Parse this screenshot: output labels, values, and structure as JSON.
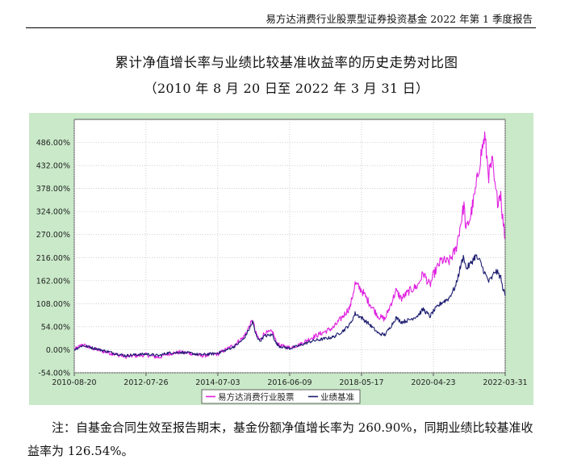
{
  "header": {
    "text": "易方达消费行业股票型证券投资基金 2022 年第 1 季度报告"
  },
  "title": "累计净值增长率与业绩比较基准收益率的历史走势对比图",
  "subtitle": "（2010 年 8 月 20 日至 2022 年 3 月 31 日）",
  "note": "注：自基金合同生效至报告期末，基金份额净值增长率为 260.90%，同期业绩比较基准收益率为 126.54%。",
  "colors": {
    "panel": "#c9e9c8",
    "plot_bg": "#ffffff",
    "fund": "#e020e0",
    "benchmark": "#1c1c70",
    "grid": "#bbbbbb"
  },
  "chart_data": {
    "type": "line",
    "title": "累计净值增长率与业绩比较基准收益率的历史走势对比图",
    "subtitle": "（2010 年 8 月 20 日至 2022 年 3 月 31 日）",
    "x_type": "date",
    "xlim": [
      "2010-08-20",
      "2022-03-31"
    ],
    "x_ticks": [
      "2010-08-20",
      "2012-07-26",
      "2014-07-03",
      "2016-06-09",
      "2018-05-17",
      "2020-04-23",
      "2022-03-31"
    ],
    "ylim": [
      -54,
      540
    ],
    "y_ticks": [
      -54,
      0,
      54,
      108,
      162,
      216,
      270,
      324,
      378,
      432,
      486
    ],
    "y_tick_labels": [
      "-54.00%",
      "0.00%",
      "54.00%",
      "108.00%",
      "162.00%",
      "216.00%",
      "270.00%",
      "324.00%",
      "378.00%",
      "432.00%",
      "486.00%"
    ],
    "grid": true,
    "legend_position": "bottom-center",
    "series": [
      {
        "name": "易方达消费行业股票",
        "color": "#e020e0",
        "x": [
          "2010-08-20",
          "2010-11-10",
          "2011-01-20",
          "2011-05-01",
          "2011-09-15",
          "2012-01-05",
          "2012-04-01",
          "2012-07-26",
          "2012-12-01",
          "2013-02-15",
          "2013-06-25",
          "2013-10-01",
          "2014-01-15",
          "2014-04-15",
          "2014-07-03",
          "2014-10-01",
          "2014-12-15",
          "2015-03-15",
          "2015-05-10",
          "2015-06-12",
          "2015-07-08",
          "2015-08-20",
          "2015-10-01",
          "2015-12-25",
          "2016-01-28",
          "2016-03-01",
          "2016-06-09",
          "2016-09-15",
          "2017-01-10",
          "2017-05-01",
          "2017-08-15",
          "2017-11-20",
          "2018-01-25",
          "2018-03-15",
          "2018-05-17",
          "2018-08-01",
          "2018-10-31",
          "2019-01-03",
          "2019-03-15",
          "2019-04-20",
          "2019-06-15",
          "2019-09-01",
          "2019-11-20",
          "2020-01-15",
          "2020-03-20",
          "2020-04-23",
          "2020-07-10",
          "2020-09-20",
          "2020-11-30",
          "2021-01-20",
          "2021-02-18",
          "2021-03-10",
          "2021-04-20",
          "2021-06-10",
          "2021-07-30",
          "2021-09-10",
          "2021-10-20",
          "2021-11-25",
          "2021-12-20",
          "2022-01-15",
          "2022-02-15",
          "2022-03-01",
          "2022-03-31"
        ],
        "y": [
          0,
          12,
          5,
          -2,
          -10,
          -16,
          -14,
          -12,
          -18,
          -10,
          -6,
          -8,
          -14,
          -12,
          -10,
          2,
          12,
          30,
          55,
          70,
          40,
          22,
          38,
          42,
          18,
          10,
          5,
          12,
          28,
          40,
          52,
          80,
          100,
          155,
          140,
          110,
          78,
          72,
          115,
          138,
          120,
          138,
          150,
          180,
          150,
          175,
          210,
          205,
          235,
          300,
          340,
          280,
          310,
          370,
          450,
          500,
          410,
          440,
          380,
          350,
          370,
          320,
          260.9
        ]
      },
      {
        "name": "业绩基准",
        "color": "#1c1c70",
        "x": [
          "2010-08-20",
          "2010-11-10",
          "2011-01-20",
          "2011-05-01",
          "2011-09-15",
          "2012-01-05",
          "2012-04-01",
          "2012-07-26",
          "2012-12-01",
          "2013-02-15",
          "2013-06-25",
          "2013-10-01",
          "2014-01-15",
          "2014-04-15",
          "2014-07-03",
          "2014-10-01",
          "2014-12-15",
          "2015-03-15",
          "2015-05-10",
          "2015-06-12",
          "2015-07-08",
          "2015-08-20",
          "2015-10-01",
          "2015-12-25",
          "2016-01-28",
          "2016-03-01",
          "2016-06-09",
          "2016-09-15",
          "2017-01-10",
          "2017-05-01",
          "2017-08-15",
          "2017-11-20",
          "2018-01-25",
          "2018-03-15",
          "2018-05-17",
          "2018-08-01",
          "2018-10-31",
          "2019-01-03",
          "2019-03-15",
          "2019-04-20",
          "2019-06-15",
          "2019-09-01",
          "2019-11-20",
          "2020-01-15",
          "2020-03-20",
          "2020-04-23",
          "2020-07-10",
          "2020-09-20",
          "2020-11-30",
          "2021-01-20",
          "2021-02-18",
          "2021-03-10",
          "2021-04-20",
          "2021-06-10",
          "2021-07-30",
          "2021-09-10",
          "2021-10-20",
          "2021-11-25",
          "2021-12-20",
          "2022-01-15",
          "2022-02-15",
          "2022-03-01",
          "2022-03-31"
        ],
        "y": [
          0,
          10,
          6,
          0,
          -8,
          -14,
          -12,
          -10,
          -14,
          -8,
          -6,
          -8,
          -12,
          -10,
          -8,
          0,
          8,
          25,
          50,
          65,
          38,
          20,
          32,
          35,
          15,
          8,
          3,
          10,
          20,
          25,
          30,
          45,
          60,
          85,
          75,
          60,
          38,
          35,
          60,
          75,
          65,
          70,
          80,
          95,
          78,
          90,
          110,
          120,
          150,
          200,
          220,
          190,
          200,
          220,
          205,
          180,
          160,
          170,
          185,
          180,
          170,
          150,
          126.54
        ]
      }
    ]
  }
}
